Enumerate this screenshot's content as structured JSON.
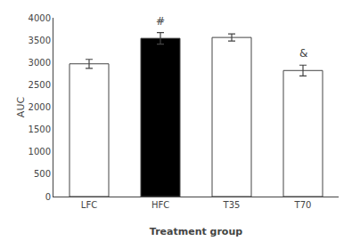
{
  "chart_data": {
    "type": "bar",
    "categories": [
      "LFC",
      "HFC",
      "T35",
      "T70"
    ],
    "values": [
      2970,
      3540,
      3560,
      2820
    ],
    "errors": [
      100,
      130,
      80,
      120
    ],
    "colors": [
      "white",
      "black",
      "white",
      "white"
    ],
    "annotations": [
      {
        "x": "HFC",
        "text": "#"
      },
      {
        "x": "T70",
        "text": "&"
      }
    ],
    "xlabel": "Treatment group",
    "ylabel": "AUC",
    "ylim": [
      0,
      4000
    ],
    "yticks": [
      0,
      500,
      1000,
      1500,
      2000,
      2500,
      3000,
      3500,
      4000
    ],
    "grid": false
  }
}
